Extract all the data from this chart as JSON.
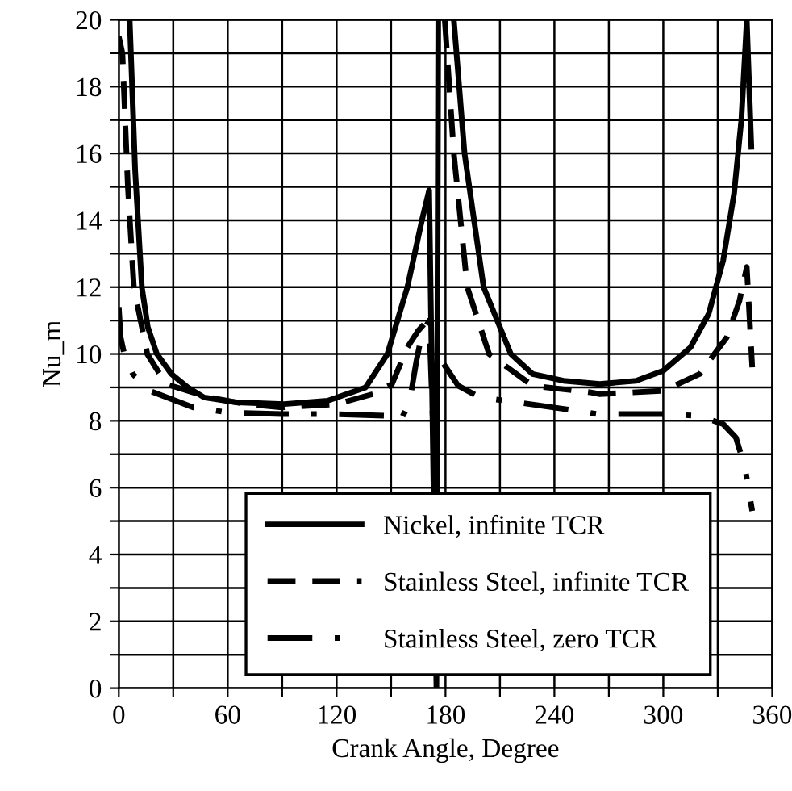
{
  "chart_data": {
    "type": "line",
    "xlabel": "Crank Angle, Degree",
    "ylabel": "Nu_m",
    "xlim": [
      0,
      360
    ],
    "ylim": [
      0,
      20
    ],
    "xticks": [
      0,
      {
        "value": 30,
        "label": null
      },
      60,
      {
        "value": 90,
        "label": null
      },
      120,
      {
        "value": 150,
        "label": null
      },
      180,
      {
        "value": 210,
        "label": null
      },
      240,
      {
        "value": 270,
        "label": null
      },
      300,
      {
        "value": 330,
        "label": null
      },
      360
    ],
    "yticks": [
      0,
      {
        "value": 1,
        "label": null
      },
      2,
      {
        "value": 3,
        "label": null
      },
      4,
      {
        "value": 5,
        "label": null
      },
      6,
      {
        "value": 7,
        "label": null
      },
      8,
      {
        "value": 9,
        "label": null
      },
      10,
      {
        "value": 11,
        "label": null
      },
      12,
      {
        "value": 13,
        "label": null
      },
      14,
      {
        "value": 15,
        "label": null
      },
      16,
      {
        "value": 17,
        "label": null
      },
      18,
      {
        "value": 19,
        "label": null
      },
      20
    ],
    "grid": true,
    "legend": "bottom",
    "series": [
      {
        "name": "Nickel, infinite TCR",
        "color": "#000000",
        "line_style": "solid",
        "x": [
          6,
          9,
          12.7,
          16,
          21,
          29,
          38,
          47,
          65,
          91,
          115,
          136,
          148,
          159,
          167,
          171,
          175,
          176,
          null,
          184.6,
          190.5,
          201,
          216,
          228,
          245,
          265,
          285,
          300,
          315,
          325,
          333,
          339,
          343,
          346,
          348.5
        ],
        "values": [
          20,
          15.5,
          12,
          10.8,
          10,
          9.4,
          9,
          8.7,
          8.55,
          8.5,
          8.6,
          9,
          10,
          12,
          14,
          14.9,
          0,
          20,
          null,
          20,
          16,
          12,
          10,
          9.4,
          9.2,
          9.1,
          9.2,
          9.5,
          10.2,
          11.2,
          12.8,
          14.8,
          17,
          20,
          16.2
        ]
      },
      {
        "name": "Stainless Steel, infinite TCR",
        "color": "#000000",
        "line_style": "dashed",
        "x": [
          0,
          2,
          5,
          8.3,
          15.7,
          26,
          50,
          70,
          90,
          120,
          140,
          150.5,
          159,
          165,
          170,
          173,
          null,
          179.6,
          184.6,
          192,
          204,
          228,
          260,
          265,
          300,
          320,
          335,
          342,
          346,
          349
        ],
        "values": [
          19.5,
          19,
          15,
          12,
          10,
          9.1,
          8.7,
          8.5,
          8.4,
          8.5,
          8.8,
          9.1,
          10.2,
          10.7,
          11,
          11.2,
          null,
          20,
          16,
          12,
          10,
          9.05,
          8.85,
          8.8,
          8.9,
          9.4,
          10.5,
          11.6,
          12.6,
          9.6
        ]
      },
      {
        "name": "Stainless Steel, zero TCR",
        "color": "#000000",
        "line_style": "dashdot",
        "x": [
          0,
          1,
          3,
          7.7,
          17,
          41,
          60,
          90,
          120,
          148,
          155,
          160,
          164,
          167,
          171,
          174,
          null,
          179,
          187,
          199,
          220,
          246,
          264,
          300,
          320,
          333,
          340,
          345,
          349
        ],
        "values": [
          11.4,
          10.5,
          10,
          9.4,
          8.9,
          8.4,
          8.25,
          8.2,
          8.2,
          8.15,
          8,
          8.5,
          9.8,
          10.6,
          11,
          6.5,
          null,
          9.7,
          9.05,
          8.7,
          8.55,
          8.35,
          8.2,
          8.2,
          8.15,
          7.9,
          7.5,
          6.6,
          5.3
        ]
      }
    ]
  }
}
